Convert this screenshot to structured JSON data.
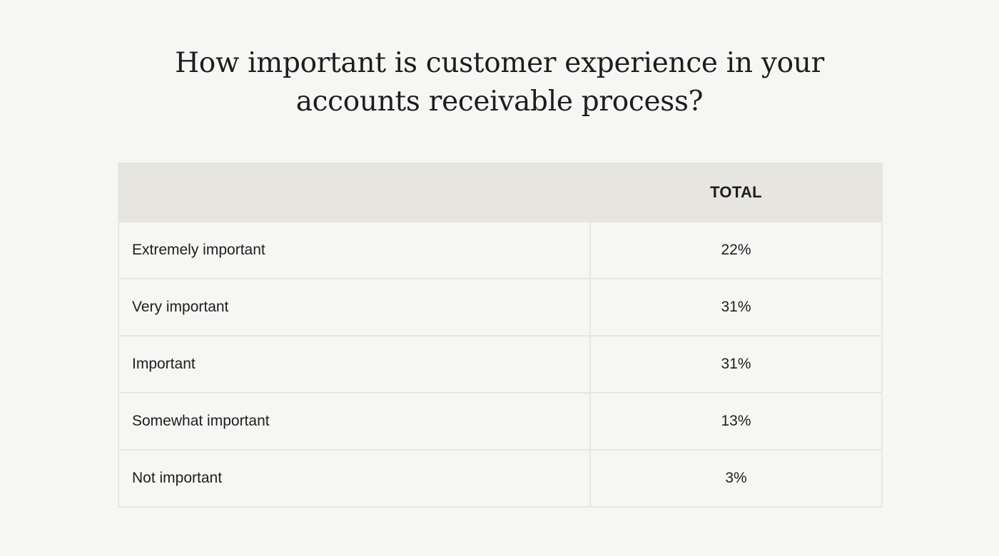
{
  "chart_data": {
    "type": "table",
    "title_lines": [
      "How important is customer experience in your",
      "accounts receivable process?"
    ],
    "columns": [
      "",
      "TOTAL"
    ],
    "rows": [
      {
        "label": "Extremely important",
        "value": "22%"
      },
      {
        "label": "Very important",
        "value": "31%"
      },
      {
        "label": "Important",
        "value": "31%"
      },
      {
        "label": "Somewhat important",
        "value": "13%"
      },
      {
        "label": "Not important",
        "value": "3%"
      }
    ]
  }
}
